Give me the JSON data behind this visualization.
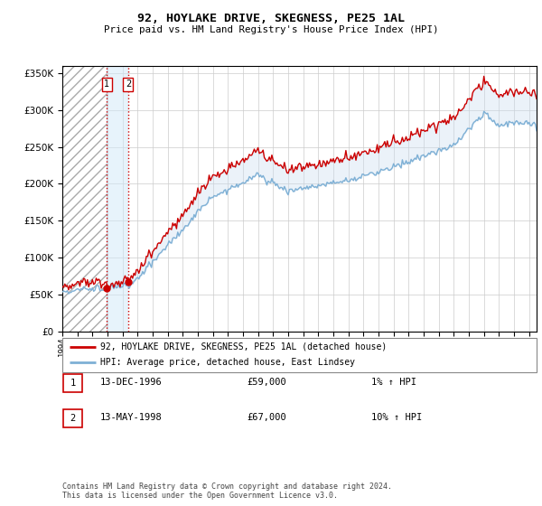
{
  "title": "92, HOYLAKE DRIVE, SKEGNESS, PE25 1AL",
  "subtitle": "Price paid vs. HM Land Registry's House Price Index (HPI)",
  "legend_line1": "92, HOYLAKE DRIVE, SKEGNESS, PE25 1AL (detached house)",
  "legend_line2": "HPI: Average price, detached house, East Lindsey",
  "sale1_date": "13-DEC-1996",
  "sale1_price": 59000,
  "sale1_hpi": "1% ↑ HPI",
  "sale2_date": "13-MAY-1998",
  "sale2_price": 67000,
  "sale2_hpi": "10% ↑ HPI",
  "footer": "Contains HM Land Registry data © Crown copyright and database right 2024.\nThis data is licensed under the Open Government Licence v3.0.",
  "hpi_color": "#7EB0D5",
  "price_color": "#CC0000",
  "fill_color": "#C8DCF0",
  "ylim": [
    0,
    360000
  ],
  "yticks": [
    0,
    50000,
    100000,
    150000,
    200000,
    250000,
    300000,
    350000
  ],
  "xlim_start": 1994.0,
  "xlim_end": 2025.5,
  "hatch_end_year": 1996.92,
  "sale_times": [
    1996.958,
    1998.375
  ]
}
